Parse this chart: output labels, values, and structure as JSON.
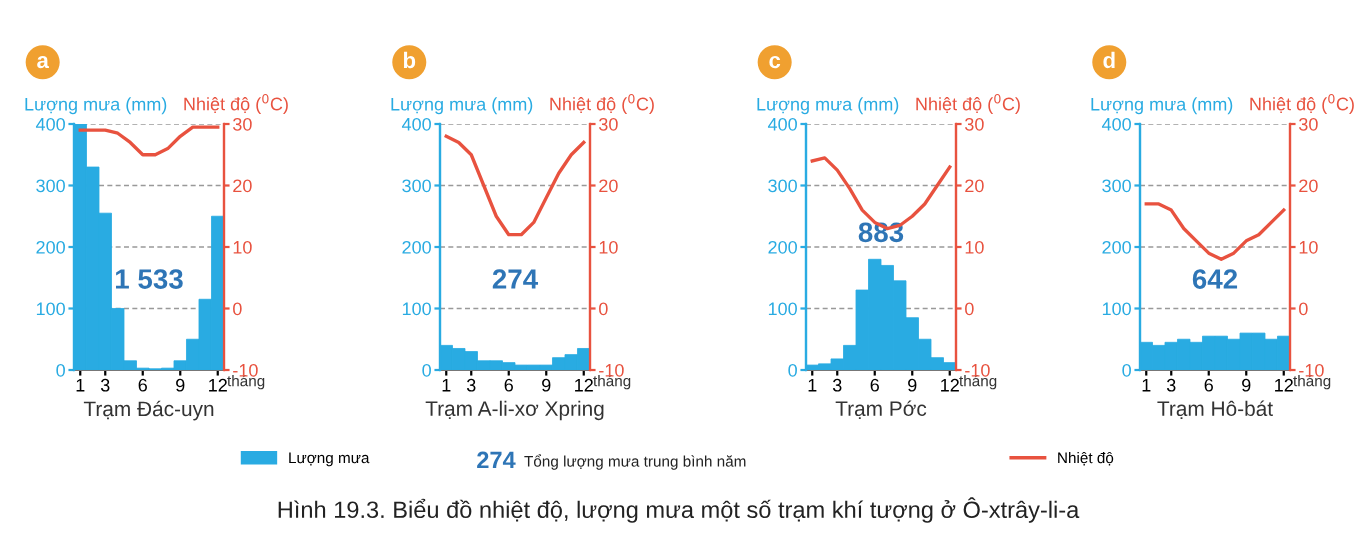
{
  "chart_data": [
    {
      "type": "bar",
      "title": "a",
      "ylabel": "Lượng mưa (mm)",
      "y2label": "Nhiệt độ ($^{0}$C)",
      "xlabel": "Trạm Đác-uyn",
      "categories": [
        "1",
        null,
        "3",
        null,
        null,
        "6",
        null,
        null,
        "9",
        null,
        null,
        "12"
      ],
      "series": [
        {
          "name": "Lượng mưa",
          "color": "#29abe2",
          "values": [
            400,
            330,
            255,
            100,
            15,
            3,
            2,
            3,
            15,
            50,
            115,
            250
          ]
        },
        {
          "name": "Nhiệt độ",
          "type": "line",
          "axis": "y2",
          "color": "#e8523f",
          "values": [
            29,
            29,
            29,
            28.5,
            27,
            25,
            25,
            26,
            28,
            29.5,
            29.5,
            29.5
          ]
        }
      ],
      "ylim": [
        0,
        400
      ],
      "yticks": [
        0,
        100,
        200,
        300,
        400
      ],
      "y2lim": [
        -10,
        30
      ],
      "y2ticks": [
        -10,
        0,
        10,
        20,
        30
      ],
      "grid": "y",
      "legend": "bottom",
      "marker": "none",
      "line_style": "solid",
      "annotations": [
        "1 533",
        "tháng",
        "274",
        "Tổng lượng mưa trung bình năm",
        "Hình 19.3. Biểu đồ nhiệt độ, lượng mưa một số trạm khí tượng ở Ô-xtrây-li-a"
      ]
    },
    {
      "type": "bar",
      "title": "b",
      "ylabel": "Lượng mưa (mm)",
      "y2label": "Nhiệt độ ($^{0}$C)",
      "xlabel": "Trạm A-li-xơ Xpring",
      "categories": [
        "1",
        null,
        "3",
        null,
        null,
        "6",
        null,
        null,
        "9",
        null,
        null,
        "12"
      ],
      "series": [
        {
          "color": "#29abe2",
          "values": [
            40,
            35,
            30,
            15,
            15,
            12,
            8,
            8,
            8,
            20,
            25,
            35
          ]
        },
        {
          "type": "line",
          "axis": "y2",
          "color": "#e8523f",
          "values": [
            28,
            27,
            25,
            20,
            15,
            12,
            12,
            14,
            18,
            22,
            25,
            27
          ]
        }
      ],
      "ylim": [
        0,
        400
      ],
      "yticks": [
        0,
        100,
        200,
        300,
        400
      ],
      "y2lim": [
        -10,
        30
      ],
      "y2ticks": [
        -10,
        0,
        10,
        20,
        30
      ],
      "grid": "y",
      "marker": "none",
      "line_style": "solid",
      "annotations": [
        "274",
        "tháng"
      ]
    },
    {
      "type": "bar",
      "title": "c",
      "ylabel": "Lượng mưa (mm)",
      "y2label": "Nhiệt độ ($^{0}$C)",
      "xlabel": "Trạm Pớc",
      "categories": [
        "1",
        null,
        "3",
        null,
        null,
        "6",
        null,
        null,
        "9",
        null,
        null,
        "12"
      ],
      "series": [
        {
          "color": "#29abe2",
          "values": [
            8,
            10,
            18,
            40,
            130,
            180,
            170,
            145,
            85,
            50,
            20,
            12
          ]
        },
        {
          "type": "line",
          "axis": "y2",
          "color": "#e8523f",
          "values": [
            24,
            24.5,
            22.5,
            19.5,
            16,
            14,
            13,
            13.5,
            15,
            17,
            20,
            23
          ]
        }
      ],
      "ylim": [
        0,
        400
      ],
      "yticks": [
        0,
        100,
        200,
        300,
        400
      ],
      "y2lim": [
        -10,
        30
      ],
      "y2ticks": [
        -10,
        0,
        10,
        20,
        30
      ],
      "grid": "y",
      "marker": "none",
      "line_style": "solid",
      "annotations": [
        "883",
        "tháng"
      ]
    },
    {
      "type": "bar",
      "title": "d",
      "ylabel": "Lượng mưa (mm)",
      "y2label": "Nhiệt độ ($^{0}$C)",
      "xlabel": "Trạm Hô-bát",
      "categories": [
        "1",
        null,
        "3",
        null,
        null,
        "6",
        null,
        null,
        "9",
        null,
        null,
        "12"
      ],
      "series": [
        {
          "color": "#29abe2",
          "values": [
            45,
            40,
            45,
            50,
            45,
            55,
            55,
            50,
            60,
            60,
            50,
            55
          ]
        },
        {
          "type": "line",
          "axis": "y2",
          "color": "#e8523f",
          "values": [
            17,
            17,
            16,
            13,
            11,
            9,
            8,
            9,
            11,
            12,
            14,
            16
          ]
        }
      ],
      "ylim": [
        0,
        400
      ],
      "yticks": [
        0,
        100,
        200,
        300,
        400
      ],
      "y2lim": [
        -10,
        30
      ],
      "y2ticks": [
        -10,
        0,
        10,
        20,
        30
      ],
      "grid": "y",
      "marker": "none",
      "line_style": "solid",
      "annotations": [
        "642",
        "tháng"
      ]
    }
  ]
}
